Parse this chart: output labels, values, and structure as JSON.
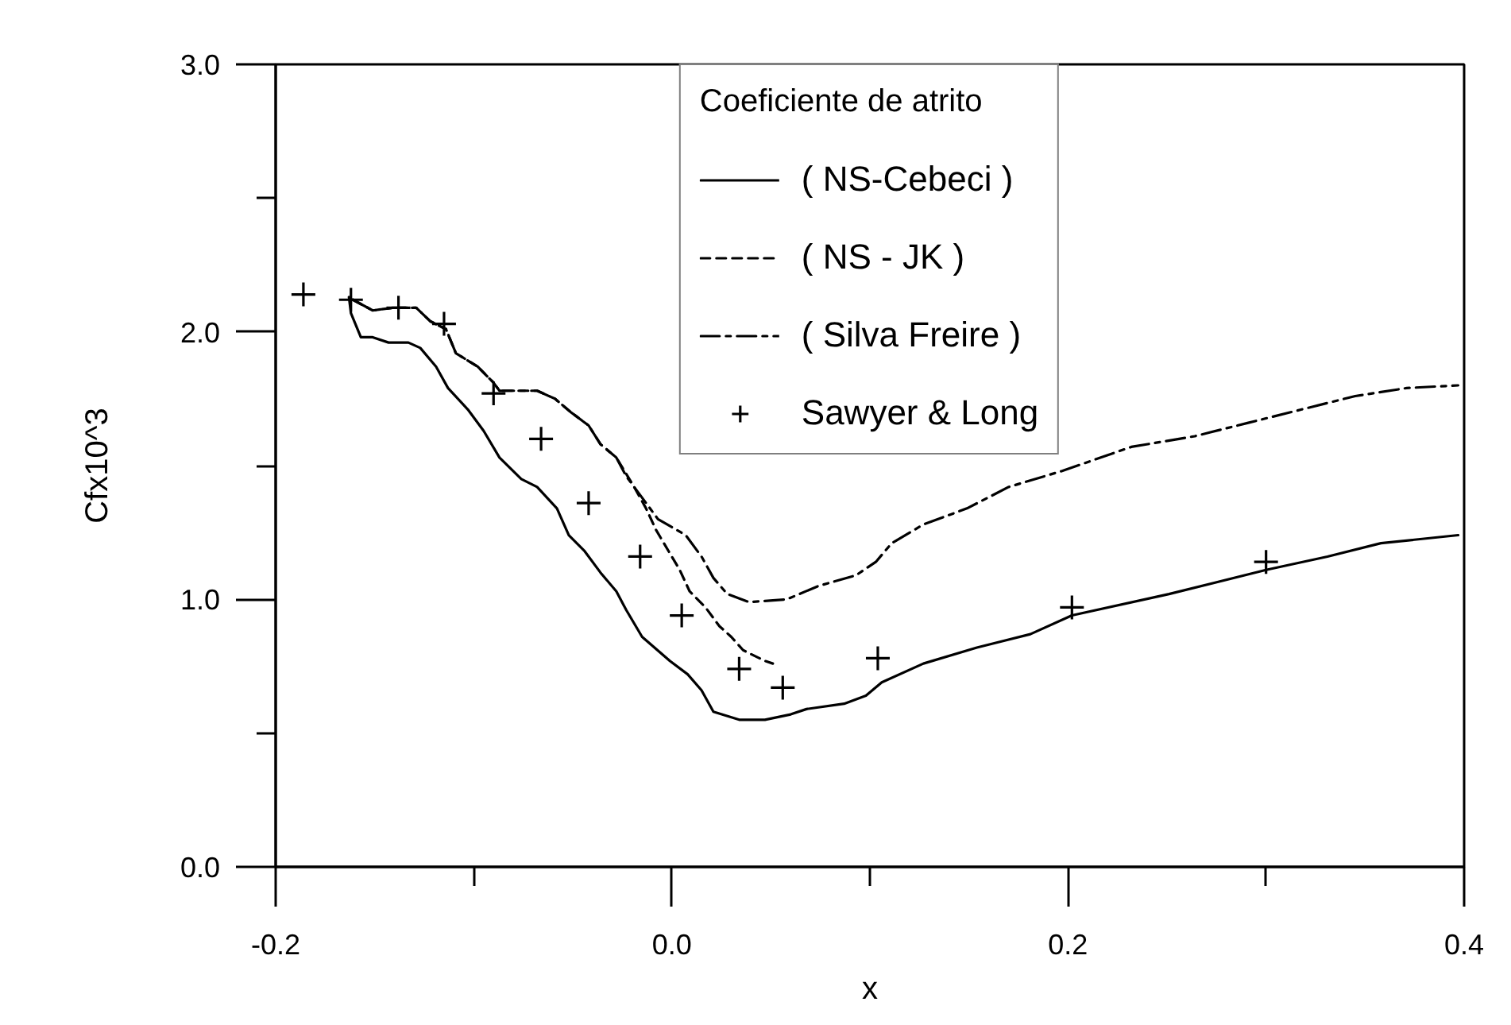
{
  "chart_data": {
    "type": "line",
    "xlabel": "x",
    "ylabel": "Cfx10^3",
    "legend_title": "Coeficiente de atrito",
    "xlim": [
      -0.2,
      0.4
    ],
    "ylim": [
      0,
      3
    ],
    "xticks": [
      -0.2,
      {
        "value": -0.1,
        "label": null
      },
      {
        "value": 0,
        "label": "0.0"
      },
      {
        "value": 0.1,
        "label": null
      },
      0.2,
      {
        "value": 0.3,
        "label": null
      },
      0.4
    ],
    "yticks": [
      {
        "value": 0,
        "label": "0.0"
      },
      {
        "value": 0.5,
        "label": null
      },
      {
        "value": 1,
        "label": "1.0"
      },
      {
        "value": 1.5,
        "label": null
      },
      {
        "value": 2,
        "label": "2.0"
      },
      {
        "value": 2.5,
        "label": null
      },
      {
        "value": 3,
        "label": "3.0"
      }
    ],
    "grid": false,
    "legend": "top",
    "series": [
      {
        "name": "( NS-Cebeci )",
        "line_style": "solid",
        "color": "#000000",
        "x": [
          -0.163,
          -0.162,
          -0.157,
          -0.151,
          -0.143,
          -0.133,
          -0.127,
          -0.119,
          -0.113,
          -0.103,
          -0.095,
          -0.087,
          -0.076,
          -0.068,
          -0.058,
          -0.052,
          -0.044,
          -0.036,
          -0.028,
          -0.023,
          -0.015,
          -0.001,
          0.008,
          0.015,
          0.021,
          0.034,
          0.047,
          0.06,
          0.068,
          0.087,
          0.098,
          0.106,
          0.127,
          0.154,
          0.181,
          0.202,
          0.251,
          0.3,
          0.331,
          0.358,
          0.397
        ],
        "values": [
          2.13,
          2.07,
          1.98,
          1.98,
          1.96,
          1.96,
          1.94,
          1.87,
          1.79,
          1.71,
          1.63,
          1.53,
          1.45,
          1.42,
          1.34,
          1.24,
          1.18,
          1.1,
          1.03,
          0.96,
          0.86,
          0.77,
          0.72,
          0.66,
          0.58,
          0.55,
          0.55,
          0.57,
          0.59,
          0.61,
          0.64,
          0.69,
          0.76,
          0.82,
          0.87,
          0.94,
          1.02,
          1.11,
          1.16,
          1.21,
          1.24
        ]
      },
      {
        "name": "( NS - JK )",
        "line_style": "dashed",
        "color": "#000000",
        "x": [
          -0.161,
          -0.151,
          -0.141,
          -0.129,
          -0.122,
          -0.114,
          -0.109,
          -0.098,
          -0.09,
          -0.087,
          -0.068,
          -0.059,
          -0.051,
          -0.042,
          -0.036,
          -0.028,
          -0.019,
          -0.013,
          -0.008,
          0.004,
          0.009,
          0.017,
          0.024,
          0.03,
          0.036,
          0.047,
          0.051
        ],
        "values": [
          2.12,
          2.08,
          2.09,
          2.09,
          2.04,
          2.01,
          1.92,
          1.87,
          1.81,
          1.78,
          1.78,
          1.75,
          1.7,
          1.65,
          1.58,
          1.53,
          1.42,
          1.34,
          1.26,
          1.11,
          1.03,
          0.97,
          0.9,
          0.86,
          0.81,
          0.77,
          0.76
        ]
      },
      {
        "name": "( Silva Freire )",
        "line_style": "dashdot",
        "color": "#000000",
        "x": [
          -0.161,
          -0.151,
          -0.141,
          -0.129,
          -0.122,
          -0.114,
          -0.109,
          -0.098,
          -0.09,
          -0.087,
          -0.068,
          -0.059,
          -0.051,
          -0.042,
          -0.036,
          -0.028,
          -0.023,
          -0.015,
          -0.007,
          0.007,
          0.015,
          0.021,
          0.028,
          0.039,
          0.058,
          0.074,
          0.093,
          0.103,
          0.111,
          0.127,
          0.149,
          0.17,
          0.197,
          0.232,
          0.264,
          0.291,
          0.318,
          0.345,
          0.371,
          0.397
        ],
        "values": [
          2.12,
          2.08,
          2.09,
          2.09,
          2.04,
          2.01,
          1.92,
          1.87,
          1.81,
          1.78,
          1.78,
          1.75,
          1.7,
          1.65,
          1.58,
          1.53,
          1.46,
          1.38,
          1.3,
          1.24,
          1.16,
          1.08,
          1.02,
          0.99,
          1.0,
          1.05,
          1.09,
          1.14,
          1.21,
          1.28,
          1.34,
          1.42,
          1.48,
          1.57,
          1.61,
          1.66,
          1.71,
          1.76,
          1.79,
          1.8
        ]
      },
      {
        "name": "Sawyer & Long",
        "type": "scatter",
        "marker": "cross",
        "color": "#000000",
        "x": [
          -0.186,
          -0.162,
          -0.138,
          -0.115,
          -0.09,
          -0.066,
          -0.042,
          -0.016,
          0.005,
          0.034,
          0.056,
          0.104,
          0.202,
          0.3
        ],
        "values": [
          2.14,
          2.12,
          2.09,
          2.03,
          1.77,
          1.6,
          1.36,
          1.16,
          0.94,
          0.74,
          0.67,
          0.78,
          0.97,
          1.14
        ]
      }
    ]
  }
}
